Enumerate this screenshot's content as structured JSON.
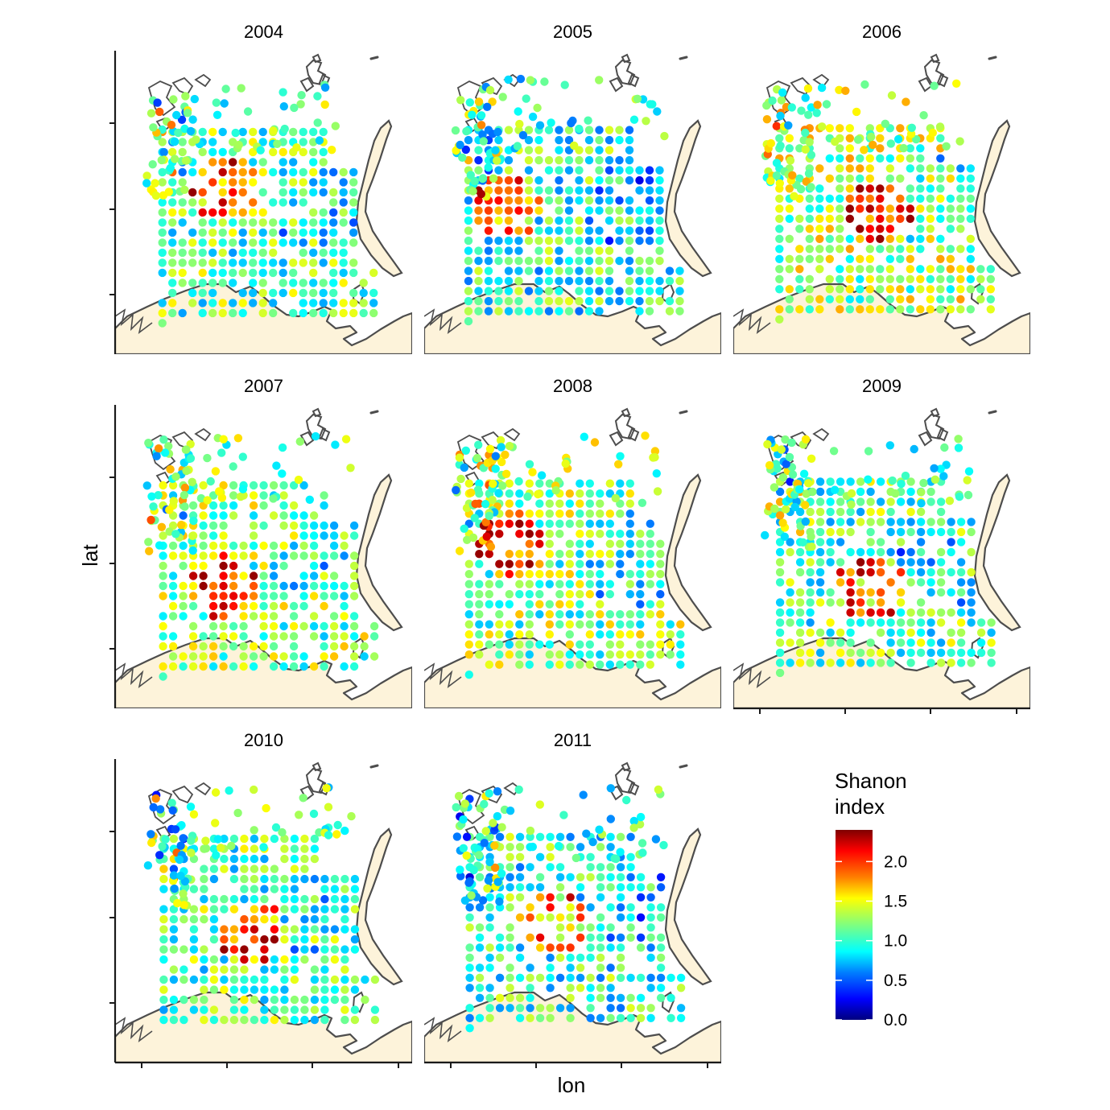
{
  "figure": {
    "x_axis_label": "lon",
    "y_axis_label": "lat",
    "legend": {
      "title_line1": "Shanon",
      "title_line2": "index",
      "ticks": [
        "0.0",
        "0.5",
        "1.0",
        "1.5",
        "2.0"
      ],
      "tick_values": [
        0.0,
        0.5,
        1.0,
        1.5,
        2.0
      ],
      "range": [
        0.0,
        2.4
      ],
      "colormap": [
        "#00007f",
        "#0000ff",
        "#007fff",
        "#00ffff",
        "#7fff7f",
        "#ffff00",
        "#ff7f00",
        "#ff0000",
        "#7f0000"
      ]
    },
    "colors": {
      "land_fill": "#fdf3da",
      "coastline": "#4d4d4d",
      "axis_line": "#1a1a1a"
    }
  },
  "chart_data": {
    "type": "scatter",
    "description_of_marks": "sampling stations colored by Shannon diversity index",
    "facets": [
      {
        "label": "2004",
        "mean_index": 1.1
      },
      {
        "label": "2005",
        "mean_index": 1.0
      },
      {
        "label": "2006",
        "mean_index": 1.3
      },
      {
        "label": "2007",
        "mean_index": 1.2
      },
      {
        "label": "2008",
        "mean_index": 1.2
      },
      {
        "label": "2009",
        "mean_index": 1.1
      },
      {
        "label": "2010",
        "mean_index": 1.1
      },
      {
        "label": "2011",
        "mean_index": 1.0
      }
    ],
    "color_scale": {
      "min": 0.0,
      "max": 2.4,
      "breaks": [
        0.0,
        0.5,
        1.0,
        1.5,
        2.0
      ]
    }
  }
}
